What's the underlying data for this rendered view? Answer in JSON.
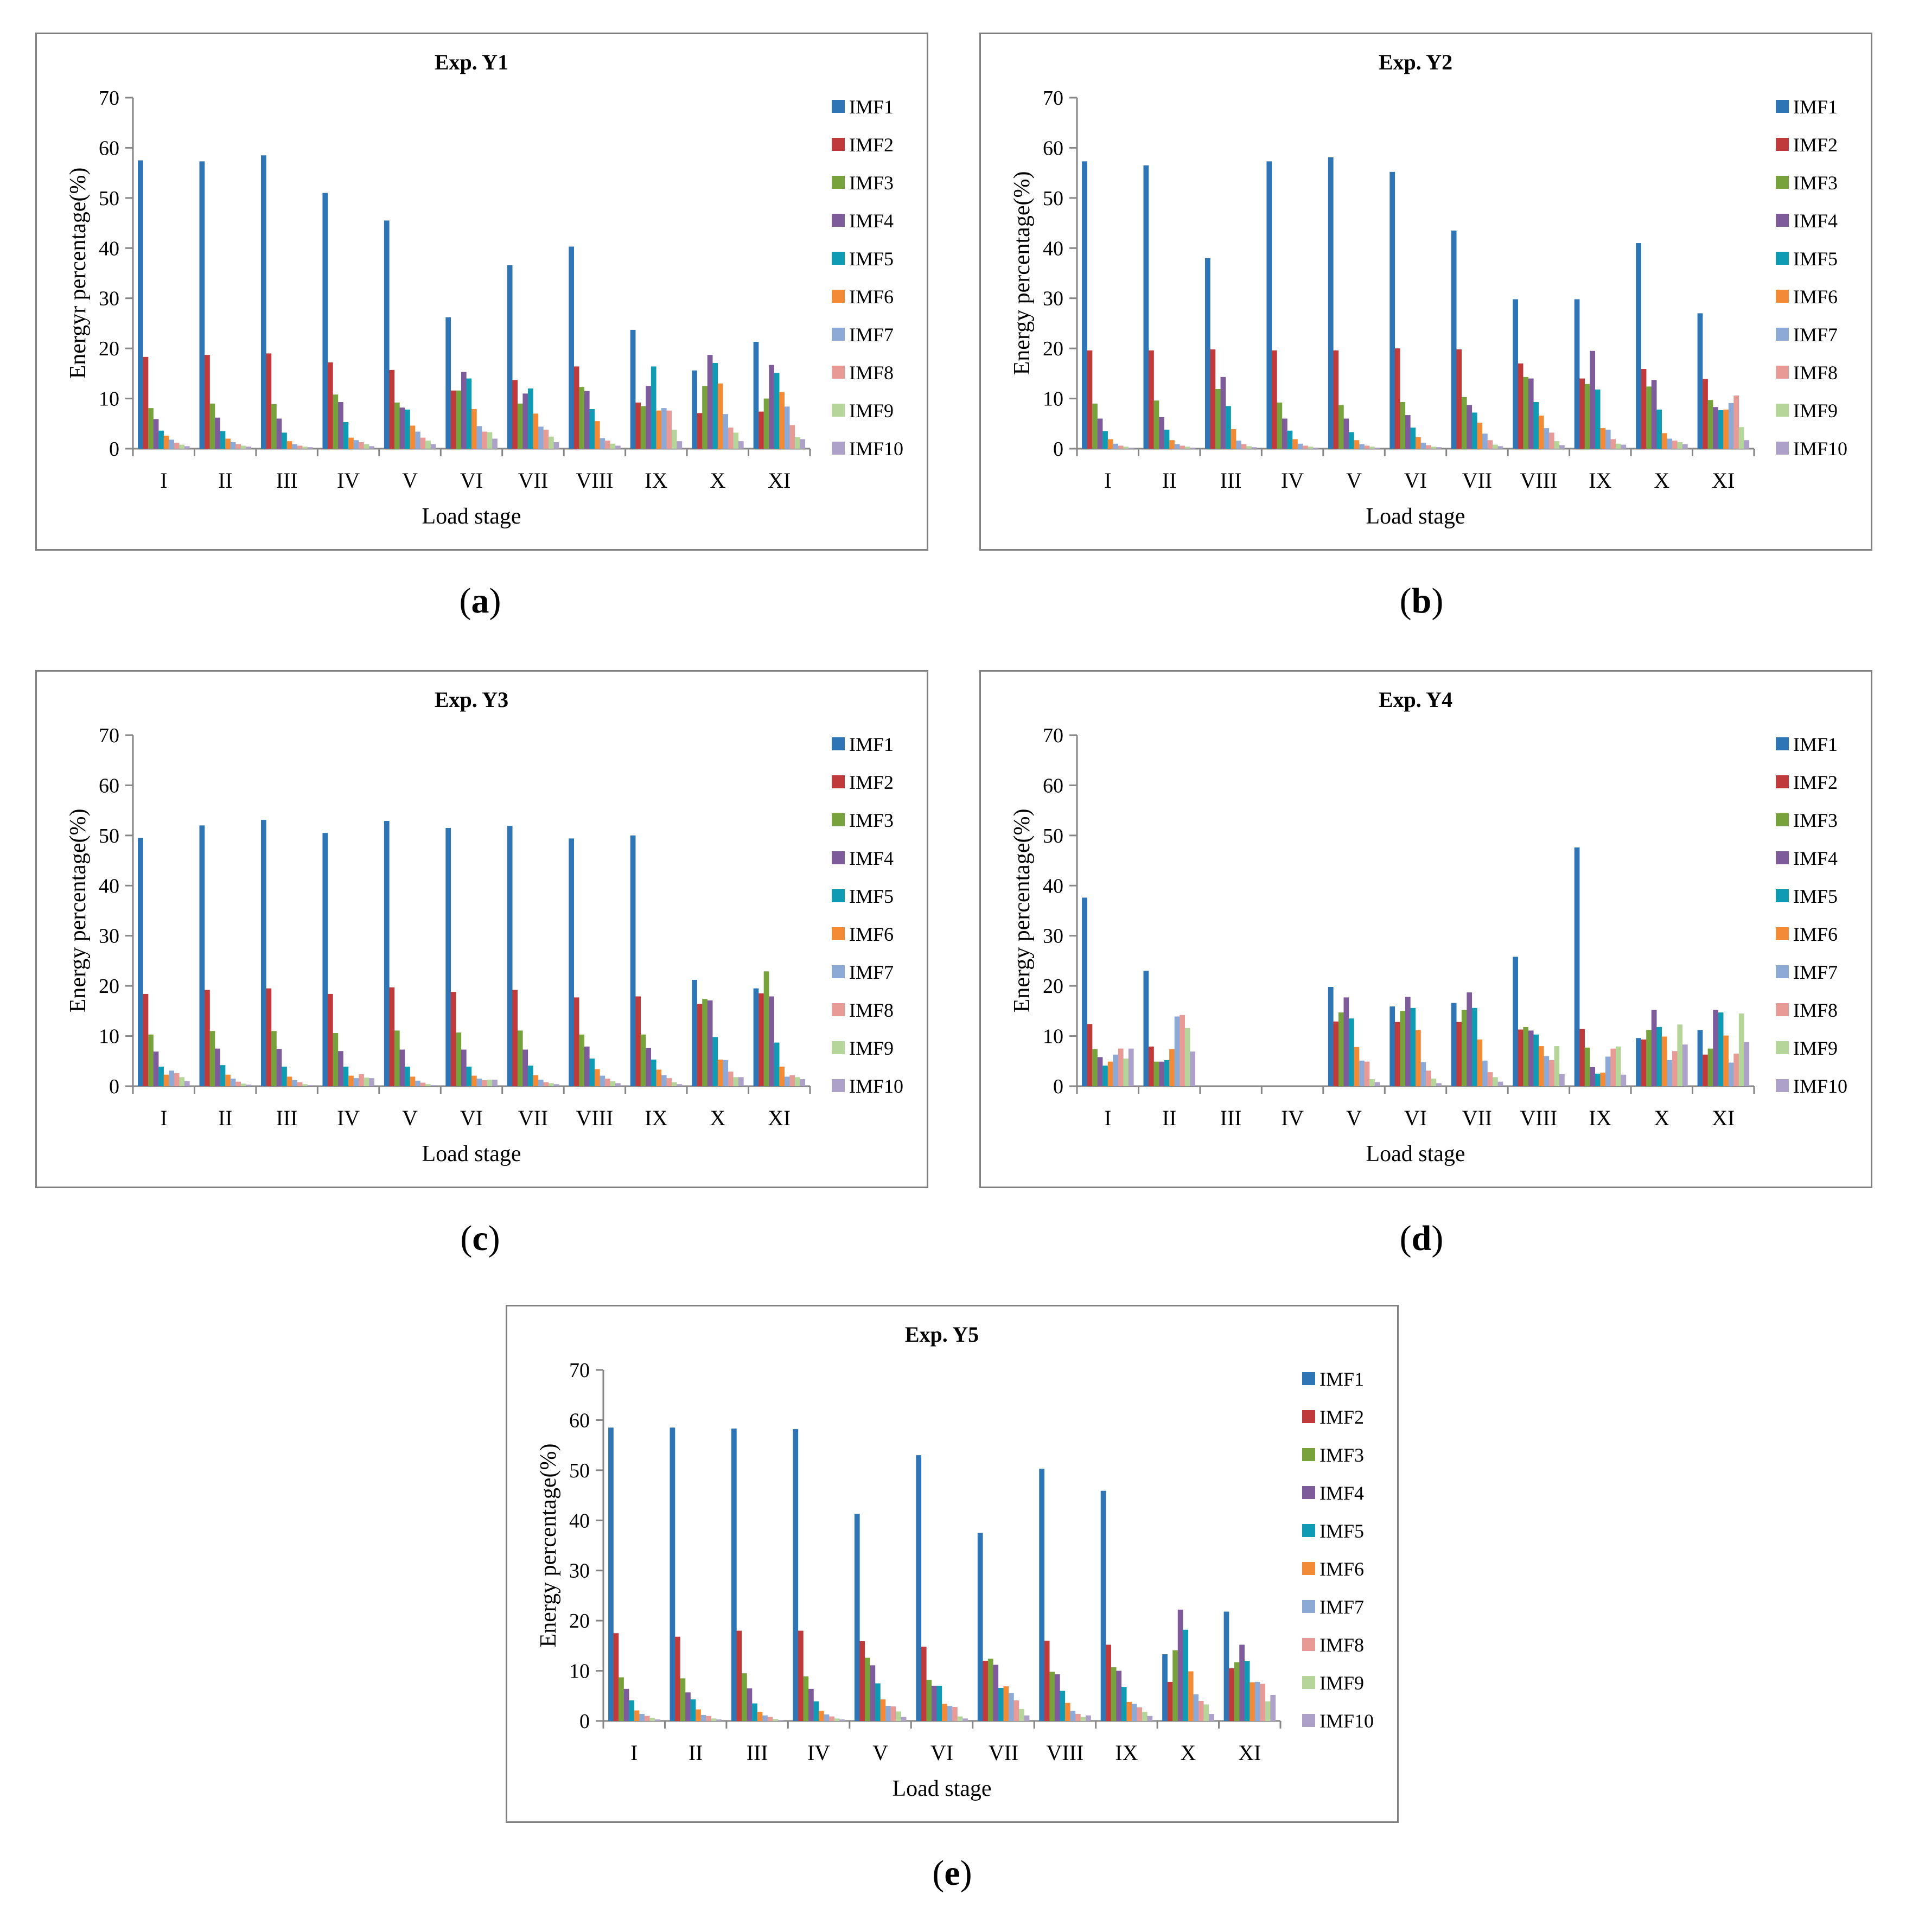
{
  "figure": {
    "series_names": [
      "IMF1",
      "IMF2",
      "IMF3",
      "IMF4",
      "IMF5",
      "IMF6",
      "IMF7",
      "IMF8",
      "IMF9",
      "IMF10"
    ],
    "series_colors": [
      "#2E75B6",
      "#C0393B",
      "#77A23C",
      "#7E5B9B",
      "#0E9BB3",
      "#F38B36",
      "#8DAAD6",
      "#E89A96",
      "#B5D59A",
      "#ADA0C9"
    ],
    "legend_position": "right",
    "panels": [
      {
        "label_open": "(",
        "label_letter": "a",
        "label_close": ")"
      },
      {
        "label_open": "(",
        "label_letter": "b",
        "label_close": ")"
      },
      {
        "label_open": "(",
        "label_letter": "c",
        "label_close": ")"
      },
      {
        "label_open": "(",
        "label_letter": "d",
        "label_close": ")"
      },
      {
        "label_open": "(",
        "label_letter": "e",
        "label_close": ")"
      }
    ]
  },
  "chart_data": [
    {
      "type": "bar",
      "title": "Exp. Y1",
      "xlabel": "Load stage",
      "ylabel": "Energyr percentage(%)",
      "ylim": [
        0,
        70
      ],
      "yticks": [
        "0",
        "10",
        "20",
        "30",
        "40",
        "50",
        "60",
        "70"
      ],
      "categories": [
        "I",
        "II",
        "III",
        "IV",
        "V",
        "VI",
        "VII",
        "VIII",
        "IX",
        "X",
        "XI"
      ],
      "series": [
        {
          "name": "IMF1",
          "values": [
            57.5,
            57.3,
            58.5,
            51,
            45.5,
            26.2,
            36.6,
            40.3,
            23.7,
            15.6,
            21.3
          ]
        },
        {
          "name": "IMF2",
          "values": [
            18.3,
            18.7,
            19,
            17.2,
            15.7,
            11.6,
            13.7,
            16.4,
            9.2,
            7.1,
            7.4
          ]
        },
        {
          "name": "IMF3",
          "values": [
            8.1,
            9,
            8.9,
            10.8,
            9.2,
            11.6,
            9,
            12.3,
            8.5,
            12.5,
            10
          ]
        },
        {
          "name": "IMF4",
          "values": [
            5.9,
            6.2,
            6,
            9.3,
            8.2,
            15.3,
            11,
            11.5,
            12.5,
            18.7,
            16.7
          ]
        },
        {
          "name": "IMF5",
          "values": [
            3.6,
            3.5,
            3.2,
            5.3,
            7.8,
            14,
            12,
            7.9,
            16.4,
            17.1,
            15.1
          ]
        },
        {
          "name": "IMF6",
          "values": [
            2.6,
            2,
            1.5,
            2.2,
            4.6,
            7.9,
            7,
            5.5,
            7.6,
            13,
            11.3
          ]
        },
        {
          "name": "IMF7",
          "values": [
            1.8,
            1.3,
            0.9,
            1.7,
            3.4,
            4.5,
            4.4,
            2.1,
            8.1,
            6.9,
            8.4
          ]
        },
        {
          "name": "IMF8",
          "values": [
            1.2,
            0.9,
            0.6,
            1.3,
            2.2,
            3.4,
            3.8,
            1.6,
            7.6,
            4.2,
            4.7
          ]
        },
        {
          "name": "IMF9",
          "values": [
            0.8,
            0.6,
            0.4,
            0.9,
            1.6,
            3.3,
            2.4,
            1,
            3.8,
            3.2,
            2.3
          ]
        },
        {
          "name": "IMF10",
          "values": [
            0.5,
            0.4,
            0.3,
            0.5,
            0.9,
            2,
            1.3,
            0.6,
            1.5,
            1.5,
            1.9
          ]
        }
      ]
    },
    {
      "type": "bar",
      "title": "Exp. Y2",
      "xlabel": "Load stage",
      "ylabel": "Energy  percentage(%)",
      "ylim": [
        0,
        70
      ],
      "yticks": [
        "0",
        "10",
        "20",
        "30",
        "40",
        "50",
        "60",
        "70"
      ],
      "categories": [
        "I",
        "II",
        "III",
        "IV",
        "V",
        "VI",
        "VII",
        "VIII",
        "IX",
        "X",
        "XI"
      ],
      "series": [
        {
          "name": "IMF1",
          "values": [
            57.3,
            56.5,
            38,
            57.3,
            58.1,
            55.2,
            43.5,
            29.8,
            29.8,
            41,
            27
          ]
        },
        {
          "name": "IMF2",
          "values": [
            19.6,
            19.6,
            19.8,
            19.6,
            19.6,
            20,
            19.8,
            17,
            14,
            15.9,
            13.9
          ]
        },
        {
          "name": "IMF3",
          "values": [
            9,
            9.6,
            11.9,
            9.2,
            8.7,
            9.3,
            10.3,
            14.3,
            12.9,
            12.4,
            9.7
          ]
        },
        {
          "name": "IMF4",
          "values": [
            6,
            6.3,
            14.3,
            6,
            6,
            6.7,
            8.7,
            14,
            19.5,
            13.7,
            8.3
          ]
        },
        {
          "name": "IMF5",
          "values": [
            3.5,
            3.8,
            8.5,
            3.6,
            3.3,
            4.2,
            7.2,
            9.3,
            11.8,
            7.8,
            7.7
          ]
        },
        {
          "name": "IMF6",
          "values": [
            1.9,
            1.7,
            3.9,
            1.9,
            1.7,
            2.3,
            5.2,
            6.6,
            4.1,
            3.1,
            7.8
          ]
        },
        {
          "name": "IMF7",
          "values": [
            1,
            0.9,
            1.6,
            1,
            0.9,
            1.2,
            3,
            4.1,
            3.8,
            2,
            9.1
          ]
        },
        {
          "name": "IMF8",
          "values": [
            0.6,
            0.6,
            0.9,
            0.6,
            0.6,
            0.7,
            1.7,
            3.2,
            1.9,
            1.6,
            10.6
          ]
        },
        {
          "name": "IMF9",
          "values": [
            0.4,
            0.4,
            0.5,
            0.4,
            0.4,
            0.4,
            0.8,
            1.5,
            1,
            1.3,
            4.3
          ]
        },
        {
          "name": "IMF10",
          "values": [
            0.2,
            0.2,
            0.3,
            0.2,
            0.2,
            0.3,
            0.5,
            0.7,
            0.8,
            0.9,
            1.7
          ]
        }
      ]
    },
    {
      "type": "bar",
      "title": "Exp. Y3",
      "xlabel": "Load stage",
      "ylabel": "Energy  percentage(%)",
      "ylim": [
        0,
        70
      ],
      "yticks": [
        "0",
        "10",
        "20",
        "30",
        "40",
        "50",
        "60",
        "70"
      ],
      "categories": [
        "I",
        "II",
        "III",
        "IV",
        "V",
        "VI",
        "VII",
        "VIII",
        "IX",
        "X",
        "XI"
      ],
      "series": [
        {
          "name": "IMF1",
          "values": [
            49.5,
            52,
            53.1,
            50.5,
            52.9,
            51.5,
            51.9,
            49.4,
            50,
            21.2,
            19.5
          ]
        },
        {
          "name": "IMF2",
          "values": [
            18.4,
            19.2,
            19.5,
            18.4,
            19.7,
            18.8,
            19.2,
            17.7,
            17.9,
            16.4,
            18.5
          ]
        },
        {
          "name": "IMF3",
          "values": [
            10.3,
            11,
            11,
            10.6,
            11.1,
            10.7,
            11.1,
            10.3,
            10.3,
            17.4,
            22.9
          ]
        },
        {
          "name": "IMF4",
          "values": [
            6.9,
            7.5,
            7.4,
            7,
            7.3,
            7.3,
            7.3,
            7.9,
            7.6,
            17.1,
            17.9
          ]
        },
        {
          "name": "IMF5",
          "values": [
            3.9,
            4.2,
            3.9,
            3.9,
            3.9,
            3.9,
            4.1,
            5.5,
            5.3,
            9.8,
            8.7
          ]
        },
        {
          "name": "IMF6",
          "values": [
            2.3,
            2.3,
            1.9,
            2.1,
            1.9,
            2.1,
            2.2,
            3.4,
            3.3,
            5.3,
            3.9
          ]
        },
        {
          "name": "IMF7",
          "values": [
            3.1,
            1.5,
            1.2,
            1.6,
            1.1,
            1.5,
            1.3,
            2.1,
            2.2,
            5.2,
            1.9
          ]
        },
        {
          "name": "IMF8",
          "values": [
            2.6,
            0.9,
            0.8,
            2.4,
            0.7,
            1.2,
            0.8,
            1.5,
            1.6,
            2.9,
            2.2
          ]
        },
        {
          "name": "IMF9",
          "values": [
            1.8,
            0.5,
            0.4,
            1.7,
            0.4,
            1.3,
            0.6,
            1,
            0.8,
            1.8,
            1.8
          ]
        },
        {
          "name": "IMF10",
          "values": [
            1,
            0.3,
            0.2,
            1.6,
            0.2,
            1.3,
            0.4,
            0.6,
            0.4,
            1.8,
            1.4
          ]
        }
      ]
    },
    {
      "type": "bar",
      "title": "Exp. Y4",
      "xlabel": "Load stage",
      "ylabel": "Energy percentage(%)",
      "ylim": [
        0,
        70
      ],
      "yticks": [
        "0",
        "10",
        "20",
        "30",
        "40",
        "50",
        "60",
        "70"
      ],
      "categories": [
        "I",
        "II",
        "III",
        "IV",
        "V",
        "VI",
        "VII",
        "VIII",
        "IX",
        "X",
        "XI"
      ],
      "series": [
        {
          "name": "IMF1",
          "values": [
            37.6,
            23,
            0,
            0,
            19.8,
            15.9,
            16.6,
            25.8,
            47.6,
            9.6,
            11.2
          ]
        },
        {
          "name": "IMF2",
          "values": [
            12.4,
            7.9,
            0,
            0,
            12.9,
            12.8,
            12.8,
            11.3,
            11.4,
            9.3,
            6.3
          ]
        },
        {
          "name": "IMF3",
          "values": [
            7.4,
            4.9,
            0,
            0,
            14.7,
            15,
            15.2,
            11.8,
            7.7,
            11.2,
            7.5
          ]
        },
        {
          "name": "IMF4",
          "values": [
            5.8,
            4.9,
            0,
            0,
            17.7,
            17.8,
            18.7,
            11.1,
            3.8,
            15.2,
            15.2
          ]
        },
        {
          "name": "IMF5",
          "values": [
            4.1,
            5.2,
            0,
            0,
            13.5,
            15.6,
            15.6,
            10.3,
            2.5,
            11.8,
            14.7
          ]
        },
        {
          "name": "IMF6",
          "values": [
            4.9,
            7.4,
            0,
            0,
            7.8,
            11.2,
            9.3,
            8,
            2.7,
            9.9,
            10.1
          ]
        },
        {
          "name": "IMF7",
          "values": [
            6.3,
            13.9,
            0,
            0,
            5.1,
            4.8,
            5.1,
            6,
            5.9,
            5.2,
            4.7
          ]
        },
        {
          "name": "IMF8",
          "values": [
            7.5,
            14.2,
            0,
            0,
            4.9,
            3.1,
            2.8,
            5.2,
            7.5,
            7,
            6.5
          ]
        },
        {
          "name": "IMF9",
          "values": [
            5.5,
            11.6,
            0,
            0,
            1.4,
            1.5,
            1.8,
            8,
            7.9,
            12.3,
            14.5
          ]
        },
        {
          "name": "IMF10",
          "values": [
            7.5,
            6.9,
            0,
            0,
            0.8,
            0.6,
            0.9,
            2.4,
            2.3,
            8.3,
            8.8
          ]
        }
      ]
    },
    {
      "type": "bar",
      "title": "Exp. Y5",
      "xlabel": "Load stage",
      "ylabel": "Energy percentage(%)",
      "ylim": [
        0,
        70
      ],
      "yticks": [
        "0",
        "10",
        "20",
        "30",
        "40",
        "50",
        "60",
        "70"
      ],
      "categories": [
        "I",
        "II",
        "III",
        "IV",
        "V",
        "VI",
        "VII",
        "VIII",
        "IX",
        "X",
        "XI"
      ],
      "series": [
        {
          "name": "IMF1",
          "values": [
            58.5,
            58.5,
            58.3,
            58.2,
            41.3,
            53,
            37.5,
            50.3,
            45.9,
            13.3,
            21.8
          ]
        },
        {
          "name": "IMF2",
          "values": [
            17.5,
            16.8,
            18,
            18,
            15.9,
            14.8,
            12,
            16,
            15.2,
            7.8,
            10.5
          ]
        },
        {
          "name": "IMF3",
          "values": [
            8.7,
            8.5,
            9.5,
            8.9,
            12.6,
            8.2,
            12.4,
            9.8,
            10.7,
            14.1,
            11.7
          ]
        },
        {
          "name": "IMF4",
          "values": [
            6.4,
            5.7,
            6.5,
            6.4,
            11.1,
            7,
            11.2,
            9.3,
            10,
            22.2,
            15.2
          ]
        },
        {
          "name": "IMF5",
          "values": [
            4.1,
            4.3,
            3.5,
            3.9,
            7.5,
            7,
            6.6,
            6,
            6.8,
            18.2,
            11.9
          ]
        },
        {
          "name": "IMF6",
          "values": [
            2.1,
            2.3,
            1.8,
            2,
            4.3,
            3.4,
            6.9,
            3.6,
            3.8,
            9.9,
            7.7
          ]
        },
        {
          "name": "IMF7",
          "values": [
            1.4,
            1.2,
            1.1,
            1.3,
            3,
            3,
            5.6,
            2,
            3.4,
            5.3,
            7.8
          ]
        },
        {
          "name": "IMF8",
          "values": [
            1,
            1,
            0.8,
            0.9,
            2.9,
            2.8,
            4.1,
            1.4,
            2.7,
            4,
            7.4
          ]
        },
        {
          "name": "IMF9",
          "values": [
            0.6,
            0.5,
            0.4,
            0.5,
            1.9,
            0.9,
            2.4,
            0.8,
            1.8,
            3.3,
            3.9
          ]
        },
        {
          "name": "IMF10",
          "values": [
            0.3,
            0.3,
            0.2,
            0.3,
            0.8,
            0.5,
            1.1,
            1.1,
            1,
            1.4,
            5.2
          ]
        }
      ]
    }
  ]
}
